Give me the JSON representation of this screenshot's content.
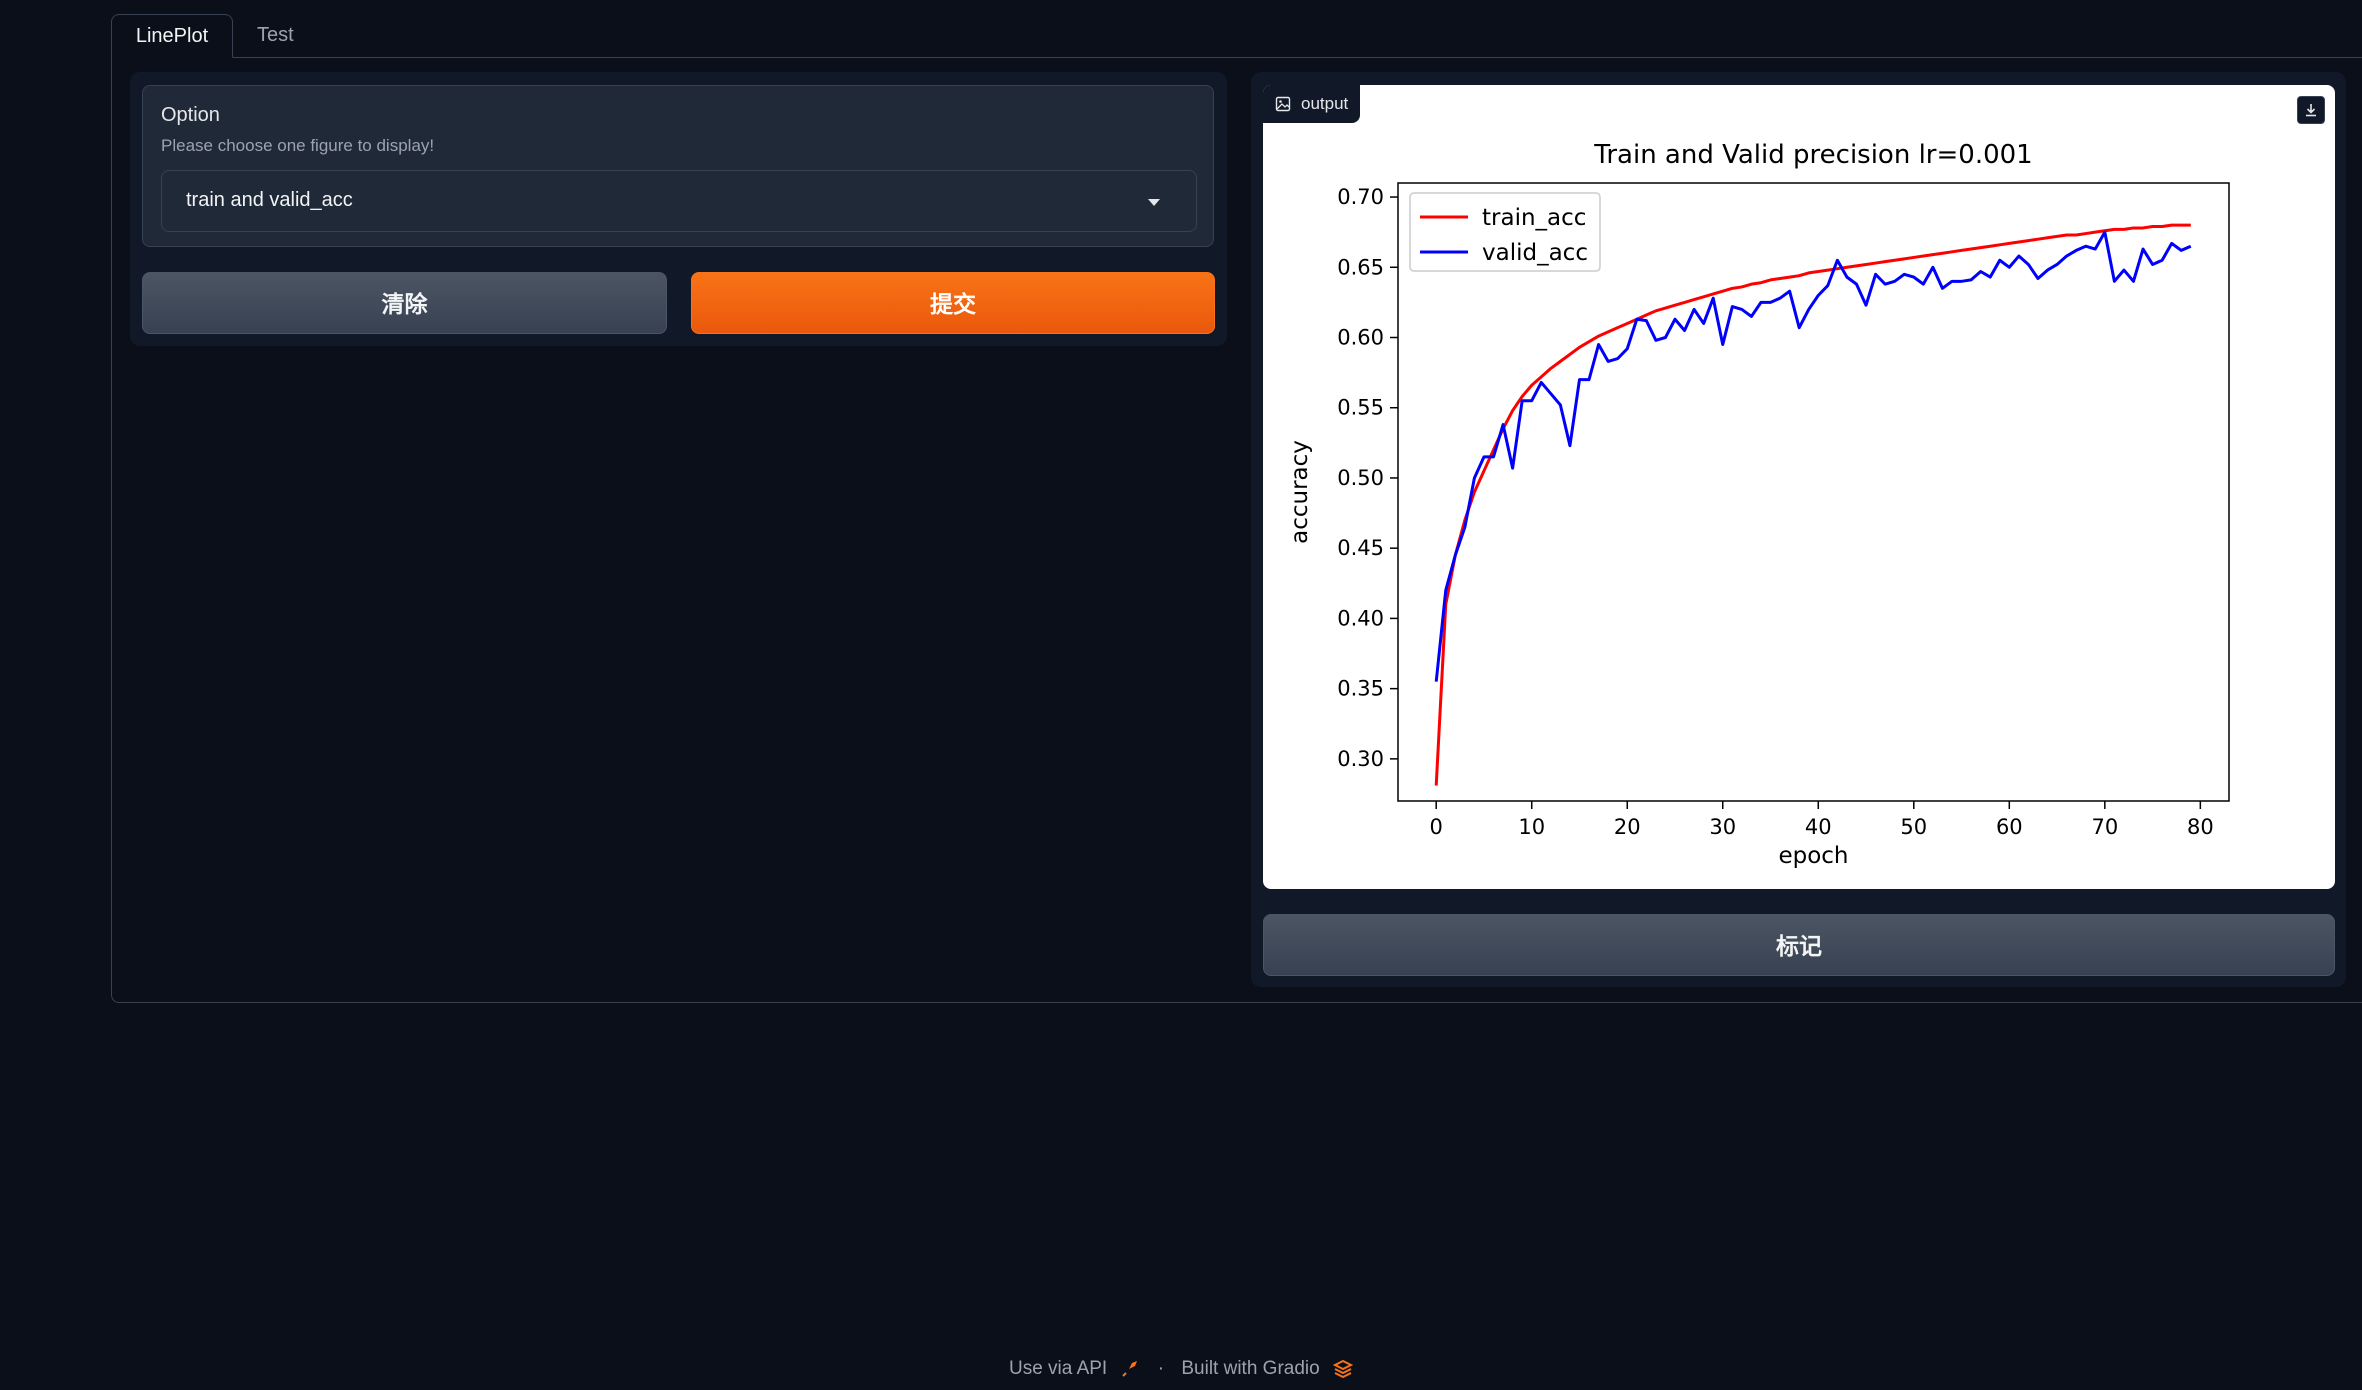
{
  "tabs": [
    {
      "label": "LinePlot"
    },
    {
      "label": "Test"
    }
  ],
  "option": {
    "label": "Option",
    "info": "Please choose one figure to display!",
    "selected": "train and valid_acc"
  },
  "buttons": {
    "clear": "清除",
    "submit": "提交",
    "flag": "标记"
  },
  "output": {
    "label": "output"
  },
  "footer": {
    "api": "Use via API",
    "separator": "·",
    "built": "Built with Gradio"
  },
  "colors": {
    "accent": "#f97316",
    "train": "#ff0000",
    "valid": "#0000ff"
  },
  "chart_data": {
    "type": "line",
    "title": "Train and Valid precision  lr=0.001",
    "xlabel": "epoch",
    "ylabel": "accuracy",
    "xlim": [
      -4,
      83
    ],
    "ylim": [
      0.27,
      0.71
    ],
    "xticks": [
      0,
      10,
      20,
      30,
      40,
      50,
      60,
      70,
      80
    ],
    "yticks": [
      0.3,
      0.35,
      0.4,
      0.45,
      0.5,
      0.55,
      0.6,
      0.65,
      0.7
    ],
    "legend": "top-left",
    "series": [
      {
        "name": "train_acc",
        "color": "#ff0000",
        "x": [
          0,
          1,
          2,
          3,
          4,
          5,
          6,
          7,
          8,
          9,
          10,
          11,
          12,
          13,
          14,
          15,
          16,
          17,
          18,
          19,
          20,
          21,
          22,
          23,
          24,
          25,
          26,
          27,
          28,
          29,
          30,
          31,
          32,
          33,
          34,
          35,
          36,
          37,
          38,
          39,
          40,
          41,
          42,
          43,
          44,
          45,
          46,
          47,
          48,
          49,
          50,
          51,
          52,
          53,
          54,
          55,
          56,
          57,
          58,
          59,
          60,
          61,
          62,
          63,
          64,
          65,
          66,
          67,
          68,
          69,
          70,
          71,
          72,
          73,
          74,
          75,
          76,
          77,
          78,
          79
        ],
        "values": [
          0.281,
          0.41,
          0.445,
          0.47,
          0.49,
          0.505,
          0.52,
          0.535,
          0.548,
          0.558,
          0.566,
          0.572,
          0.578,
          0.583,
          0.588,
          0.593,
          0.597,
          0.601,
          0.604,
          0.607,
          0.61,
          0.613,
          0.616,
          0.619,
          0.621,
          0.623,
          0.625,
          0.627,
          0.629,
          0.631,
          0.633,
          0.635,
          0.636,
          0.638,
          0.639,
          0.641,
          0.642,
          0.643,
          0.644,
          0.646,
          0.647,
          0.648,
          0.649,
          0.65,
          0.651,
          0.652,
          0.653,
          0.654,
          0.655,
          0.656,
          0.657,
          0.658,
          0.659,
          0.66,
          0.661,
          0.662,
          0.663,
          0.664,
          0.665,
          0.666,
          0.667,
          0.668,
          0.669,
          0.67,
          0.671,
          0.672,
          0.673,
          0.673,
          0.674,
          0.675,
          0.676,
          0.677,
          0.677,
          0.678,
          0.678,
          0.679,
          0.679,
          0.68,
          0.68,
          0.68
        ]
      },
      {
        "name": "valid_acc",
        "color": "#0000ff",
        "x": [
          0,
          1,
          2,
          3,
          4,
          5,
          6,
          7,
          8,
          9,
          10,
          11,
          12,
          13,
          14,
          15,
          16,
          17,
          18,
          19,
          20,
          21,
          22,
          23,
          24,
          25,
          26,
          27,
          28,
          29,
          30,
          31,
          32,
          33,
          34,
          35,
          36,
          37,
          38,
          39,
          40,
          41,
          42,
          43,
          44,
          45,
          46,
          47,
          48,
          49,
          50,
          51,
          52,
          53,
          54,
          55,
          56,
          57,
          58,
          59,
          60,
          61,
          62,
          63,
          64,
          65,
          66,
          67,
          68,
          69,
          70,
          71,
          72,
          73,
          74,
          75,
          76,
          77,
          78,
          79
        ],
        "values": [
          0.355,
          0.42,
          0.445,
          0.465,
          0.5,
          0.515,
          0.515,
          0.538,
          0.507,
          0.555,
          0.555,
          0.568,
          0.56,
          0.552,
          0.523,
          0.57,
          0.57,
          0.595,
          0.583,
          0.585,
          0.592,
          0.613,
          0.612,
          0.598,
          0.6,
          0.613,
          0.605,
          0.62,
          0.61,
          0.628,
          0.595,
          0.622,
          0.62,
          0.615,
          0.625,
          0.625,
          0.628,
          0.633,
          0.607,
          0.62,
          0.63,
          0.637,
          0.655,
          0.643,
          0.638,
          0.623,
          0.645,
          0.638,
          0.64,
          0.645,
          0.643,
          0.638,
          0.65,
          0.635,
          0.64,
          0.64,
          0.641,
          0.647,
          0.643,
          0.655,
          0.65,
          0.658,
          0.652,
          0.642,
          0.648,
          0.652,
          0.658,
          0.662,
          0.665,
          0.663,
          0.675,
          0.64,
          0.648,
          0.64,
          0.663,
          0.652,
          0.655,
          0.667,
          0.662,
          0.665
        ]
      }
    ]
  }
}
